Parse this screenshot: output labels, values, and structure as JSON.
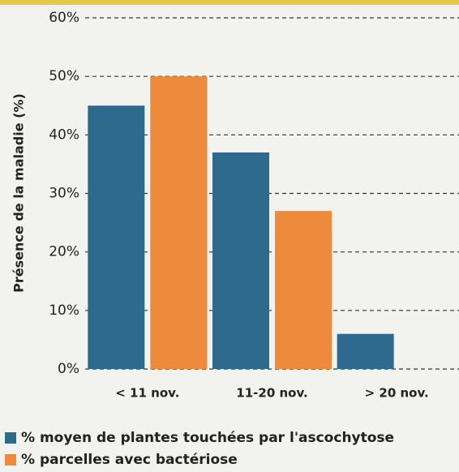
{
  "chart_data": {
    "type": "bar",
    "y_label": "Présence de la maladie (%)",
    "categories": [
      "< 11 nov.",
      "11-20 nov.",
      "> 20 nov."
    ],
    "series": [
      {
        "name": "% moyen de plantes touchées par l'ascochytose",
        "color": "#2e6a8e",
        "values": [
          45,
          37,
          6
        ]
      },
      {
        "name": "% parcelles avec bactériose",
        "color": "#ee8a3c",
        "values": [
          50,
          27,
          null
        ]
      }
    ],
    "ylim": [
      0,
      60
    ],
    "yticks": [
      {
        "value": 0,
        "label": "0%"
      },
      {
        "value": 10,
        "label": "10%"
      },
      {
        "value": 20,
        "label": "20%"
      },
      {
        "value": 30,
        "label": "30%"
      },
      {
        "value": 40,
        "label": "40%"
      },
      {
        "value": 50,
        "label": "50%"
      },
      {
        "value": 60,
        "label": "60%"
      }
    ],
    "grid": true
  }
}
